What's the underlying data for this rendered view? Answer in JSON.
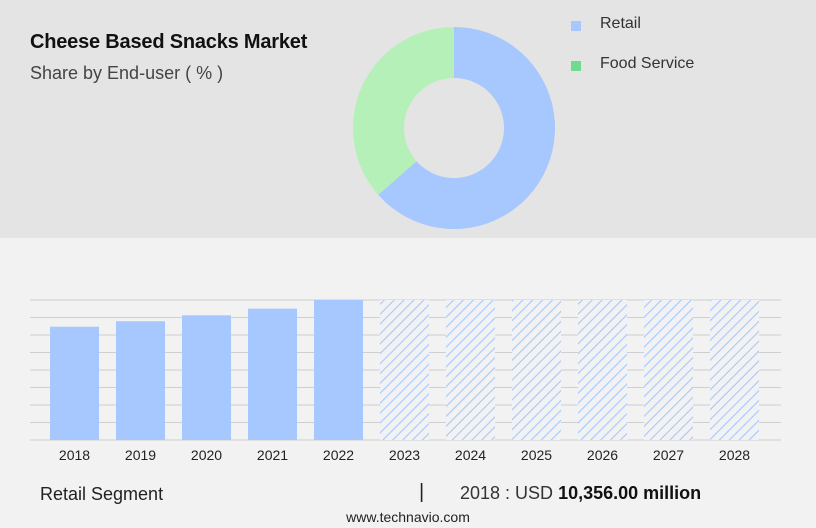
{
  "header": {
    "title": "Cheese Based Snacks Market",
    "subtitle": "Share by End-user ( % )"
  },
  "colors": {
    "retail": "#a6c8ff",
    "food_service": "#b5f0b8",
    "food_service_legend": "#6edc8c",
    "top_background": "#e4e4e4",
    "bottom_background": "#f2f2f2"
  },
  "chart_data": [
    {
      "type": "pie",
      "variant": "donut",
      "title": "Share by End-user ( % )",
      "legend_position": "top-right",
      "slices": [
        {
          "label": "Retail",
          "value": 63.5
        },
        {
          "label": "Food Service",
          "value": 36.5
        }
      ]
    },
    {
      "type": "bar",
      "categories": [
        "2018",
        "2019",
        "2020",
        "2021",
        "2022",
        "2023",
        "2024",
        "2025",
        "2026",
        "2027",
        "2028"
      ],
      "values": [
        10356,
        10860,
        11400,
        12010,
        12800,
        null,
        null,
        null,
        null,
        null,
        null
      ],
      "forecast_categories": [
        "2023",
        "2024",
        "2025",
        "2026",
        "2027",
        "2028"
      ],
      "forecast_style": "hatched",
      "ylim": [
        0,
        12800
      ],
      "grid": true,
      "xlabel": "",
      "ylabel": ""
    }
  ],
  "footer": {
    "segment": "Retail Segment",
    "separator": "|",
    "stat_prefix": "2018 : USD",
    "stat_value": "10,356.00 million"
  },
  "source": "www.technavio.com"
}
